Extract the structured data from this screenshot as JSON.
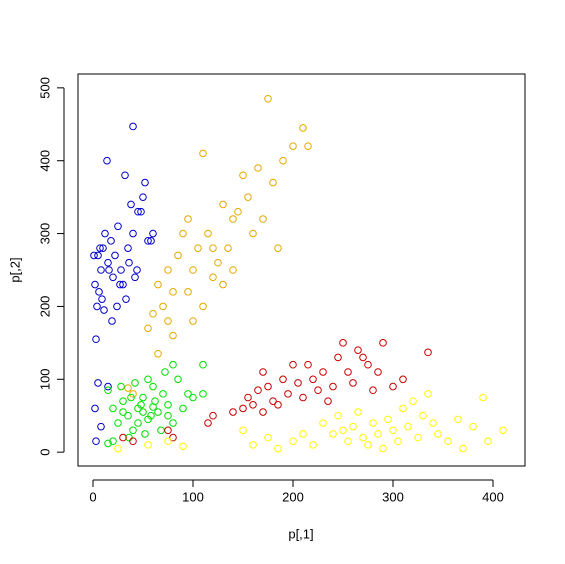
{
  "chart_data": {
    "type": "scatter",
    "x_label": "p[,1]",
    "y_label": "p[,2]",
    "xlim": [
      -15,
      432
    ],
    "ylim": [
      -19,
      519
    ],
    "xticks": [
      0,
      100,
      200,
      300,
      400
    ],
    "yticks": [
      0,
      100,
      200,
      300,
      400,
      500
    ],
    "series": [
      {
        "color": "#0000CD",
        "x": [
          2,
          5,
          8,
          4,
          10,
          12,
          15,
          3,
          6,
          20,
          25,
          18,
          22,
          28,
          30,
          35,
          40,
          38,
          45,
          50,
          55,
          32,
          27,
          14,
          9,
          1,
          7,
          16,
          24,
          36,
          42,
          48,
          52,
          60,
          58,
          44,
          33,
          19,
          11,
          40,
          5,
          2,
          15,
          8,
          3
        ],
        "values": [
          230,
          270,
          250,
          200,
          280,
          300,
          260,
          155,
          220,
          240,
          310,
          290,
          270,
          250,
          230,
          280,
          300,
          340,
          330,
          350,
          290,
          380,
          230,
          400,
          210,
          270,
          280,
          250,
          200,
          260,
          240,
          330,
          370,
          300,
          290,
          250,
          210,
          180,
          195,
          447,
          95,
          60,
          90,
          35,
          15
        ]
      },
      {
        "color": "#E6A800",
        "x": [
          55,
          60,
          65,
          70,
          75,
          80,
          85,
          90,
          95,
          100,
          105,
          110,
          115,
          120,
          125,
          130,
          135,
          140,
          145,
          150,
          155,
          160,
          165,
          170,
          175,
          180,
          185,
          190,
          200,
          210,
          215,
          95,
          110,
          120,
          100,
          75,
          65,
          80,
          130,
          140,
          35,
          40
        ],
        "values": [
          170,
          190,
          230,
          200,
          250,
          220,
          270,
          300,
          320,
          250,
          280,
          410,
          300,
          280,
          260,
          340,
          280,
          320,
          330,
          380,
          350,
          300,
          390,
          320,
          485,
          370,
          280,
          400,
          420,
          445,
          420,
          220,
          200,
          240,
          180,
          180,
          135,
          160,
          230,
          250,
          88,
          80
        ]
      },
      {
        "color": "#00E000",
        "x": [
          15,
          20,
          25,
          30,
          35,
          40,
          45,
          50,
          55,
          60,
          65,
          70,
          75,
          80,
          85,
          90,
          95,
          100,
          110,
          42,
          52,
          58,
          48,
          38,
          30,
          28,
          72,
          80,
          62,
          55,
          45,
          15,
          20,
          110,
          68,
          75,
          36,
          50,
          60
        ],
        "values": [
          85,
          60,
          40,
          70,
          50,
          30,
          60,
          75,
          45,
          90,
          55,
          80,
          65,
          40,
          100,
          60,
          80,
          75,
          120,
          95,
          25,
          50,
          65,
          75,
          55,
          90,
          110,
          120,
          70,
          100,
          40,
          12,
          15,
          80,
          30,
          50,
          20,
          55,
          62
        ]
      },
      {
        "color": "#CC0000",
        "x": [
          30,
          40,
          75,
          80,
          115,
          120,
          140,
          150,
          160,
          165,
          170,
          175,
          180,
          185,
          190,
          195,
          200,
          205,
          210,
          215,
          220,
          225,
          230,
          235,
          240,
          245,
          250,
          255,
          260,
          265,
          270,
          275,
          280,
          285,
          290,
          300,
          310,
          335,
          170,
          155
        ],
        "values": [
          20,
          15,
          30,
          20,
          40,
          50,
          55,
          60,
          65,
          85,
          110,
          90,
          70,
          65,
          100,
          80,
          120,
          95,
          75,
          120,
          100,
          85,
          110,
          70,
          90,
          130,
          150,
          110,
          95,
          140,
          130,
          120,
          85,
          110,
          150,
          90,
          100,
          137,
          55,
          75
        ]
      },
      {
        "color": "#FFFF00",
        "x": [
          25,
          55,
          75,
          90,
          150,
          160,
          175,
          185,
          200,
          210,
          220,
          230,
          240,
          245,
          250,
          255,
          260,
          265,
          270,
          275,
          280,
          285,
          290,
          295,
          300,
          305,
          310,
          315,
          320,
          325,
          330,
          335,
          340,
          345,
          355,
          365,
          370,
          380,
          390,
          395,
          410
        ],
        "values": [
          5,
          10,
          15,
          8,
          30,
          10,
          20,
          5,
          15,
          25,
          10,
          40,
          25,
          50,
          30,
          15,
          35,
          55,
          20,
          10,
          40,
          25,
          5,
          45,
          30,
          15,
          60,
          35,
          70,
          20,
          50,
          80,
          40,
          25,
          15,
          45,
          5,
          35,
          75,
          15,
          30
        ]
      }
    ]
  }
}
